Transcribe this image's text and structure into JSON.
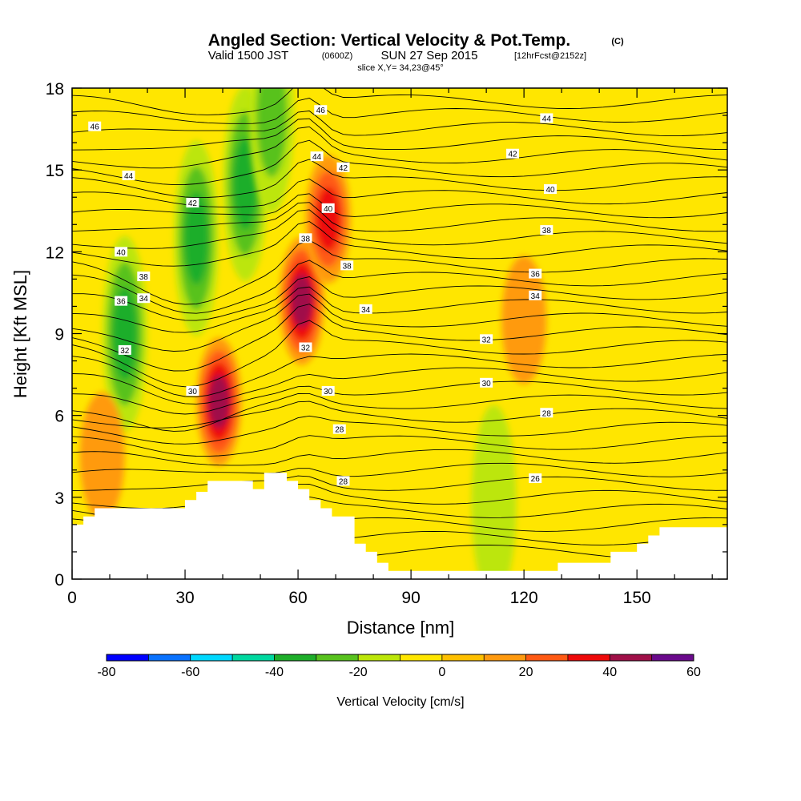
{
  "chart_data": {
    "type": "heatmap",
    "title": "Angled Section: Vertical Velocity & Pot.Temp.",
    "title_unit": "(C)",
    "subtitle": {
      "valid": "Valid 1500 JST",
      "utc": "(0600Z)",
      "date": "SUN 27 Sep 2015",
      "forecast": "[12hrFcst@2152z]"
    },
    "slice_label": "slice X,Y= 34,23@45°",
    "xlabel": "Distance [nm]",
    "ylabel": "Height [Kft MSL]",
    "xlim": [
      0,
      174
    ],
    "ylim": [
      0,
      18
    ],
    "x_ticks": [
      0,
      30,
      60,
      90,
      120,
      150
    ],
    "x_tick_labels": [
      "0",
      "30",
      "60",
      "90",
      "120",
      "150"
    ],
    "y_ticks": [
      0,
      3,
      6,
      9,
      12,
      15,
      18
    ],
    "y_tick_labels": [
      "0",
      "3",
      "6",
      "9",
      "12",
      "15",
      "18"
    ],
    "colorbar": {
      "label": "Vertical Velocity [cm/s]",
      "min": -80,
      "max": 60,
      "step": 10,
      "tick_values": [
        -80,
        -60,
        -40,
        -20,
        0,
        20,
        40,
        60
      ],
      "tick_labels": [
        "-80",
        "-60",
        "-40",
        "-20",
        "0",
        "20",
        "40",
        "60"
      ],
      "colors": [
        "#0000ff",
        "#0a72ff",
        "#00d8ff",
        "#00d8a0",
        "#1eae2a",
        "#58c21e",
        "#bce60a",
        "#ffe600",
        "#ffc000",
        "#ff9a10",
        "#ff5a14",
        "#ee0a0a",
        "#a01048",
        "#6a0a8c"
      ]
    },
    "background_fill": {
      "range": [
        0,
        10
      ],
      "color": "#ffe600"
    },
    "velocity_features": [
      {
        "kind": "updraft",
        "x": 39,
        "y": 6.5,
        "peak": 45
      },
      {
        "kind": "updraft",
        "x": 61,
        "y": 10.2,
        "peak": 45
      },
      {
        "kind": "updraft",
        "x": 68,
        "y": 13.2,
        "peak": 35
      },
      {
        "kind": "downdraft",
        "x": 46,
        "y": 14.5,
        "peak": -30
      },
      {
        "kind": "downdraft",
        "x": 33,
        "y": 12.5,
        "peak": -30
      },
      {
        "kind": "downdraft",
        "x": 14,
        "y": 9.0,
        "peak": -30
      },
      {
        "kind": "downdraft",
        "x": 53,
        "y": 17.0,
        "peak": -25
      },
      {
        "kind": "downdraft",
        "x": 112,
        "y": 2.8,
        "peak": -15
      },
      {
        "kind": "updraft",
        "x": 120,
        "y": 9.5,
        "peak": 15
      },
      {
        "kind": "updraft",
        "x": 8,
        "y": 4.5,
        "peak": 15
      }
    ],
    "contour_labels": [
      {
        "text": "46",
        "x": 6,
        "y": 16.6
      },
      {
        "text": "44",
        "x": 15,
        "y": 14.8
      },
      {
        "text": "42",
        "x": 32,
        "y": 13.8
      },
      {
        "text": "40",
        "x": 13,
        "y": 12.0
      },
      {
        "text": "38",
        "x": 19,
        "y": 11.1
      },
      {
        "text": "36",
        "x": 13,
        "y": 10.2
      },
      {
        "text": "34",
        "x": 19,
        "y": 10.3
      },
      {
        "text": "32",
        "x": 14,
        "y": 8.4
      },
      {
        "text": "30",
        "x": 32,
        "y": 6.9
      },
      {
        "text": "46",
        "x": 66,
        "y": 17.2
      },
      {
        "text": "44",
        "x": 65,
        "y": 15.5
      },
      {
        "text": "42",
        "x": 72,
        "y": 15.1
      },
      {
        "text": "40",
        "x": 68,
        "y": 13.6
      },
      {
        "text": "38",
        "x": 62,
        "y": 12.5
      },
      {
        "text": "38",
        "x": 73,
        "y": 11.5
      },
      {
        "text": "34",
        "x": 78,
        "y": 9.9
      },
      {
        "text": "32",
        "x": 62,
        "y": 8.5
      },
      {
        "text": "30",
        "x": 68,
        "y": 6.9
      },
      {
        "text": "28",
        "x": 71,
        "y": 5.5
      },
      {
        "text": "28",
        "x": 72,
        "y": 3.6
      },
      {
        "text": "44",
        "x": 126,
        "y": 16.9
      },
      {
        "text": "42",
        "x": 117,
        "y": 15.6
      },
      {
        "text": "40",
        "x": 127,
        "y": 14.3
      },
      {
        "text": "38",
        "x": 126,
        "y": 12.8
      },
      {
        "text": "36",
        "x": 123,
        "y": 11.2
      },
      {
        "text": "34",
        "x": 123,
        "y": 10.4
      },
      {
        "text": "32",
        "x": 110,
        "y": 8.8
      },
      {
        "text": "30",
        "x": 110,
        "y": 7.2
      },
      {
        "text": "28",
        "x": 126,
        "y": 6.1
      },
      {
        "text": "26",
        "x": 123,
        "y": 3.7
      }
    ],
    "terrain_top": [
      [
        0,
        2.0
      ],
      [
        3,
        2.0
      ],
      [
        3,
        2.3
      ],
      [
        6,
        2.3
      ],
      [
        6,
        2.6
      ],
      [
        30,
        2.6
      ],
      [
        30,
        2.9
      ],
      [
        33,
        2.9
      ],
      [
        33,
        3.2
      ],
      [
        36,
        3.2
      ],
      [
        36,
        3.6
      ],
      [
        48,
        3.6
      ],
      [
        48,
        3.3
      ],
      [
        51,
        3.3
      ],
      [
        51,
        3.9
      ],
      [
        57,
        3.9
      ],
      [
        57,
        3.6
      ],
      [
        60,
        3.6
      ],
      [
        60,
        3.3
      ],
      [
        63,
        3.3
      ],
      [
        63,
        2.9
      ],
      [
        66,
        2.9
      ],
      [
        66,
        2.6
      ],
      [
        69,
        2.6
      ],
      [
        69,
        2.3
      ],
      [
        75,
        2.3
      ],
      [
        75,
        1.3
      ],
      [
        78,
        1.3
      ],
      [
        78,
        1.0
      ],
      [
        81,
        1.0
      ],
      [
        81,
        0.6
      ],
      [
        84,
        0.6
      ],
      [
        84,
        0.3
      ],
      [
        129,
        0.3
      ],
      [
        129,
        0.6
      ],
      [
        143,
        0.6
      ],
      [
        143,
        1.0
      ],
      [
        150,
        1.0
      ],
      [
        150,
        1.3
      ],
      [
        153,
        1.3
      ],
      [
        153,
        1.6
      ],
      [
        156,
        1.6
      ],
      [
        156,
        1.9
      ],
      [
        174,
        1.9
      ]
    ]
  }
}
